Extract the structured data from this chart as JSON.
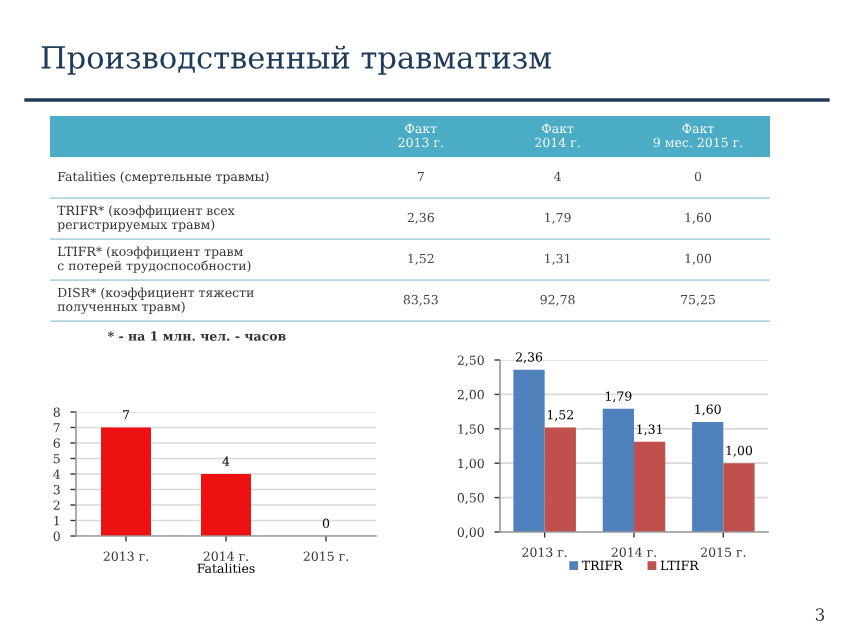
{
  "chart_data": [
    {
      "type": "other",
      "title": "Производственный травматизм",
      "categories": [
        null,
        "Факт\n2013 г.",
        "Факт\n2014 г.",
        "Факт\n9 мес. 2015 г."
      ],
      "y_categories": [
        "Fatalities (смертельные травмы)",
        "TRIFR* (коэффициент всех\nрегистрируемых травм)",
        "LTIFR* (коэффициент травм\nс потерей трудоспособности)",
        "DISR* (коэффициент тяжести\nполученных травм)"
      ],
      "cell_labels": [
        [
          "7",
          "4",
          "0"
        ],
        [
          "2,36",
          "1,79",
          "1,60"
        ],
        [
          "1,52",
          "1,31",
          "1,00"
        ],
        [
          "83,53",
          "92,78",
          "75,25"
        ]
      ],
      "color": "#4bacc6",
      "annotations": [
        "* - на 1 млн. чел. - часов",
        "3"
      ]
    },
    {
      "type": "bar",
      "xlabel": "Fatalities",
      "categories": [
        "2013 г.",
        "2014 г.",
        "2015 г."
      ],
      "values": [
        7,
        4,
        0
      ],
      "color": "#ee1111",
      "ylim": [
        0,
        8
      ],
      "yticks": [
        0,
        1,
        2,
        3,
        4,
        5,
        6,
        7,
        8
      ],
      "grid": "y",
      "data_labels": true
    },
    {
      "type": "bar",
      "categories": [
        "2013 г.",
        "2014 г.",
        "2015 г."
      ],
      "series": [
        {
          "name": "TRIFR",
          "color": "#4f81bd",
          "values": [
            2.36,
            1.79,
            1.6
          ],
          "value_labels": [
            "2,36",
            "1,79",
            "1,60"
          ]
        },
        {
          "name": "LTIFR",
          "color": "#c0504d",
          "values": [
            1.52,
            1.31,
            1.0
          ],
          "value_labels": [
            "1,52",
            "1,31",
            "1,00"
          ]
        }
      ],
      "ylim": [
        0,
        2.5
      ],
      "yticks": [
        {
          "value": 0,
          "label": "0,00"
        },
        {
          "value": 0.5,
          "label": "0,50"
        },
        {
          "value": 1,
          "label": "1,00"
        },
        {
          "value": 1.5,
          "label": "1,50"
        },
        {
          "value": 2,
          "label": "2,00"
        },
        {
          "value": 2.5,
          "label": "2,50"
        }
      ],
      "grid": "y",
      "legend": "bottom"
    }
  ]
}
